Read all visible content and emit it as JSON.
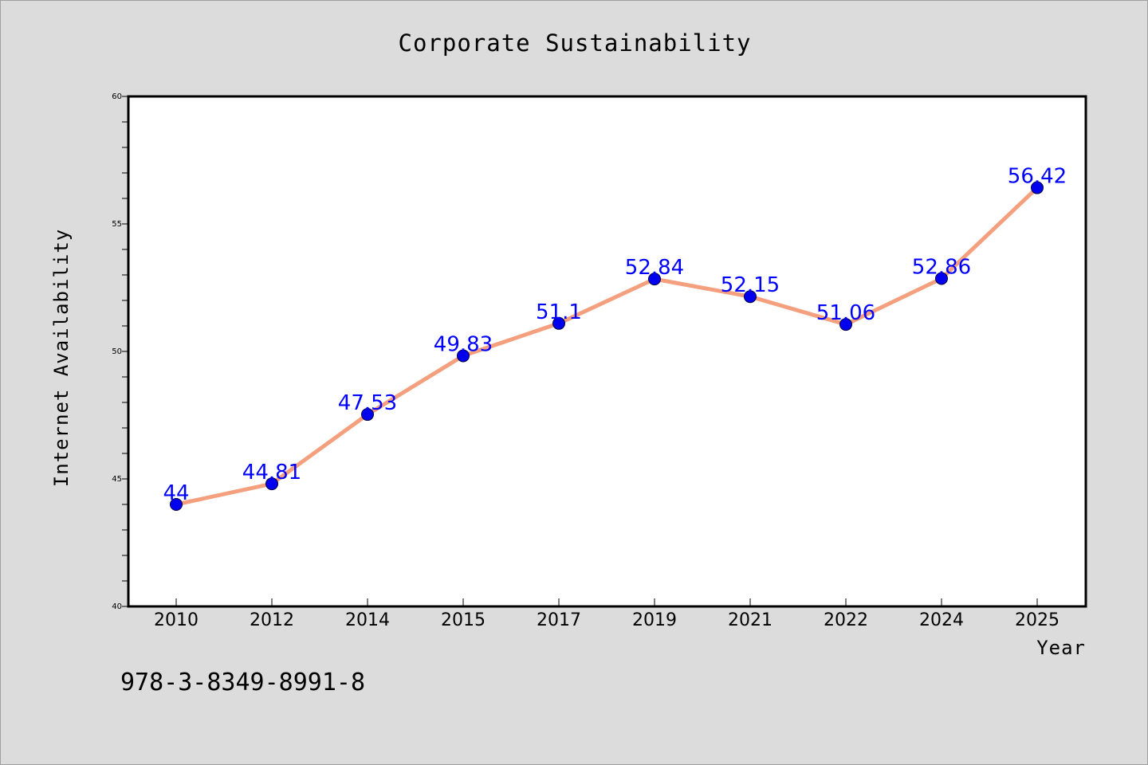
{
  "chart_data": {
    "type": "line",
    "title": "Corporate Sustainability",
    "xlabel": "Year",
    "ylabel": "Internet Availability",
    "categories": [
      "2010",
      "2012",
      "2014",
      "2015",
      "2017",
      "2019",
      "2021",
      "2022",
      "2024",
      "2025"
    ],
    "series": [
      {
        "values": [
          44,
          44.81,
          47.53,
          49.83,
          51.1,
          52.84,
          52.15,
          51.06,
          52.86,
          56.42
        ],
        "data_labels": [
          "44",
          "44.81",
          "47.53",
          "49.83",
          "51.1",
          "52.84",
          "52.15",
          "51.06",
          "52.86",
          "56.42"
        ],
        "line_color": "#f4a07e",
        "marker_color": "#0000ee"
      }
    ],
    "ylim": [
      40,
      60
    ],
    "yticks": [
      "40",
      "45",
      "50",
      "55",
      "60"
    ],
    "grid": false,
    "legend": "none",
    "label_color": "#0000ff",
    "background_color": "#dcdcdc",
    "plot_background": "#ffffff"
  },
  "footer": {
    "isbn": "978-3-8349-8991-8"
  }
}
